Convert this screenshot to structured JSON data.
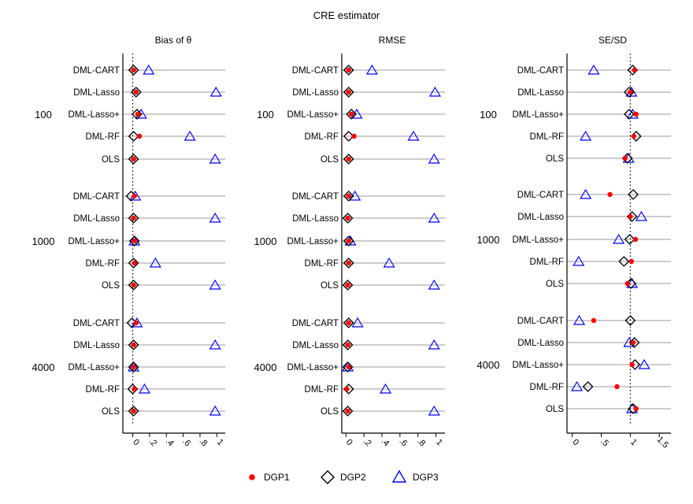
{
  "chart_data": {
    "type": "scatter",
    "title": "CRE estimator",
    "series_styles": {
      "DGP1": {
        "marker": "circle",
        "color": "#ff0000",
        "filled": true
      },
      "DGP2": {
        "marker": "diamond",
        "color": "#000000",
        "filled": false
      },
      "DGP3": {
        "marker": "triangle",
        "color": "#0000ff",
        "filled": false
      }
    },
    "legend": {
      "position": "bottom-center",
      "entries": [
        "DGP1",
        "DGP2",
        "DGP3"
      ]
    },
    "sample_sizes": [
      "100",
      "1000",
      "4000"
    ],
    "methods": [
      "DML-CART",
      "DML-Lasso",
      "DML-Lasso+",
      "DML-RF",
      "OLS"
    ],
    "panels": [
      {
        "title": "Bias of θ",
        "xlim": [
          -0.08,
          1.1
        ],
        "ref_line": 0,
        "ticks": [
          0,
          0.2,
          0.4,
          0.6,
          0.8,
          1
        ],
        "tick_labels": [
          "0",
          ".2",
          ".4",
          ".6",
          ".8",
          "1"
        ],
        "groups": [
          {
            "n": "100",
            "rows": [
              {
                "method": "DML-CART",
                "DGP1": 0.01,
                "DGP2": 0.01,
                "DGP3": 0.19
              },
              {
                "method": "DML-Lasso",
                "DGP1": 0.04,
                "DGP2": 0.04,
                "DGP3": 0.99
              },
              {
                "method": "DML-Lasso+",
                "DGP1": 0.06,
                "DGP2": 0.05,
                "DGP3": 0.1
              },
              {
                "method": "DML-RF",
                "DGP1": 0.08,
                "DGP2": 0.01,
                "DGP3": 0.68
              },
              {
                "method": "OLS",
                "DGP1": 0.01,
                "DGP2": 0.01,
                "DGP3": 0.98
              }
            ]
          },
          {
            "n": "1000",
            "rows": [
              {
                "method": "DML-CART",
                "DGP1": 0.02,
                "DGP2": -0.02,
                "DGP3": 0.03
              },
              {
                "method": "DML-Lasso",
                "DGP1": 0.01,
                "DGP2": 0.01,
                "DGP3": 0.98
              },
              {
                "method": "DML-Lasso+",
                "DGP1": 0.02,
                "DGP2": 0.02,
                "DGP3": 0.02
              },
              {
                "method": "DML-RF",
                "DGP1": 0.02,
                "DGP2": 0.01,
                "DGP3": 0.27
              },
              {
                "method": "OLS",
                "DGP1": 0.01,
                "DGP2": 0.01,
                "DGP3": 0.98
              }
            ]
          },
          {
            "n": "4000",
            "rows": [
              {
                "method": "DML-CART",
                "DGP1": 0.04,
                "DGP2": -0.01,
                "DGP3": 0.05
              },
              {
                "method": "DML-Lasso",
                "DGP1": 0.01,
                "DGP2": 0.01,
                "DGP3": 0.98
              },
              {
                "method": "DML-Lasso+",
                "DGP1": 0.01,
                "DGP2": 0.01,
                "DGP3": 0.01
              },
              {
                "method": "DML-RF",
                "DGP1": 0.02,
                "DGP2": 0.0,
                "DGP3": 0.14
              },
              {
                "method": "OLS",
                "DGP1": 0.01,
                "DGP2": 0.01,
                "DGP3": 0.98
              }
            ]
          }
        ]
      },
      {
        "title": "RMSE",
        "xlim": [
          -0.02,
          1.1
        ],
        "ref_line": null,
        "ticks": [
          0,
          0.2,
          0.4,
          0.6,
          0.8,
          1
        ],
        "tick_labels": [
          "0",
          ".2",
          ".4",
          ".6",
          ".8",
          "1"
        ],
        "groups": [
          {
            "n": "100",
            "rows": [
              {
                "method": "DML-CART",
                "DGP1": 0.03,
                "DGP2": 0.03,
                "DGP3": 0.29
              },
              {
                "method": "DML-Lasso",
                "DGP1": 0.03,
                "DGP2": 0.03,
                "DGP3": 0.99
              },
              {
                "method": "DML-Lasso+",
                "DGP1": 0.06,
                "DGP2": 0.06,
                "DGP3": 0.12
              },
              {
                "method": "DML-RF",
                "DGP1": 0.09,
                "DGP2": 0.03,
                "DGP3": 0.75
              },
              {
                "method": "OLS",
                "DGP1": 0.03,
                "DGP2": 0.03,
                "DGP3": 0.98
              }
            ]
          },
          {
            "n": "1000",
            "rows": [
              {
                "method": "DML-CART",
                "DGP1": 0.03,
                "DGP2": 0.03,
                "DGP3": 0.1
              },
              {
                "method": "DML-Lasso",
                "DGP1": 0.02,
                "DGP2": 0.02,
                "DGP3": 0.98
              },
              {
                "method": "DML-Lasso+",
                "DGP1": 0.03,
                "DGP2": 0.03,
                "DGP3": 0.05
              },
              {
                "method": "DML-RF",
                "DGP1": 0.03,
                "DGP2": 0.03,
                "DGP3": 0.48
              },
              {
                "method": "OLS",
                "DGP1": 0.02,
                "DGP2": 0.02,
                "DGP3": 0.98
              }
            ]
          },
          {
            "n": "4000",
            "rows": [
              {
                "method": "DML-CART",
                "DGP1": 0.03,
                "DGP2": 0.03,
                "DGP3": 0.13
              },
              {
                "method": "DML-Lasso",
                "DGP1": 0.02,
                "DGP2": 0.02,
                "DGP3": 0.98
              },
              {
                "method": "DML-Lasso+",
                "DGP1": 0.03,
                "DGP2": 0.02,
                "DGP3": 0.02
              },
              {
                "method": "DML-RF",
                "DGP1": 0.01,
                "DGP2": 0.03,
                "DGP3": 0.44
              },
              {
                "method": "OLS",
                "DGP1": 0.02,
                "DGP2": 0.02,
                "DGP3": 0.98
              }
            ]
          }
        ]
      },
      {
        "title": "SE/SD",
        "xlim": [
          -0.05,
          1.7
        ],
        "ref_line": 1,
        "ticks": [
          0,
          0.5,
          1,
          1.5
        ],
        "tick_labels": [
          "0",
          ".5",
          "1",
          "1.5"
        ],
        "groups": [
          {
            "n": "100",
            "rows": [
              {
                "method": "DML-CART",
                "DGP1": 1.07,
                "DGP2": 1.04,
                "DGP3": 0.37
              },
              {
                "method": "DML-Lasso",
                "DGP1": 1.0,
                "DGP2": 0.98,
                "DGP3": 1.02
              },
              {
                "method": "DML-Lasso+",
                "DGP1": 1.1,
                "DGP2": 0.98,
                "DGP3": 1.04
              },
              {
                "method": "DML-RF",
                "DGP1": 1.06,
                "DGP2": 1.1,
                "DGP3": 0.23
              },
              {
                "method": "OLS",
                "DGP1": 0.91,
                "DGP2": 0.95,
                "DGP3": 0.97
              }
            ]
          },
          {
            "n": "1000",
            "rows": [
              {
                "method": "DML-CART",
                "DGP1": 0.65,
                "DGP2": 1.05,
                "DGP3": 0.23
              },
              {
                "method": "DML-Lasso",
                "DGP1": 1.0,
                "DGP2": 1.03,
                "DGP3": 1.19
              },
              {
                "method": "DML-Lasso+",
                "DGP1": 1.09,
                "DGP2": 0.99,
                "DGP3": 0.8
              },
              {
                "method": "DML-RF",
                "DGP1": 1.02,
                "DGP2": 0.89,
                "DGP3": 0.11
              },
              {
                "method": "OLS",
                "DGP1": 0.95,
                "DGP2": 1.01,
                "DGP3": 1.03
              }
            ]
          },
          {
            "n": "4000",
            "rows": [
              {
                "method": "DML-CART",
                "DGP1": 0.37,
                "DGP2": 1.0,
                "DGP3": 0.12
              },
              {
                "method": "DML-Lasso",
                "DGP1": 1.05,
                "DGP2": 1.07,
                "DGP3": 0.98
              },
              {
                "method": "DML-Lasso+",
                "DGP1": 1.03,
                "DGP2": 1.08,
                "DGP3": 1.24
              },
              {
                "method": "DML-RF",
                "DGP1": 0.77,
                "DGP2": 0.27,
                "DGP3": 0.08
              },
              {
                "method": "OLS",
                "DGP1": 1.1,
                "DGP2": 1.05,
                "DGP3": 1.03
              }
            ]
          }
        ]
      }
    ]
  }
}
